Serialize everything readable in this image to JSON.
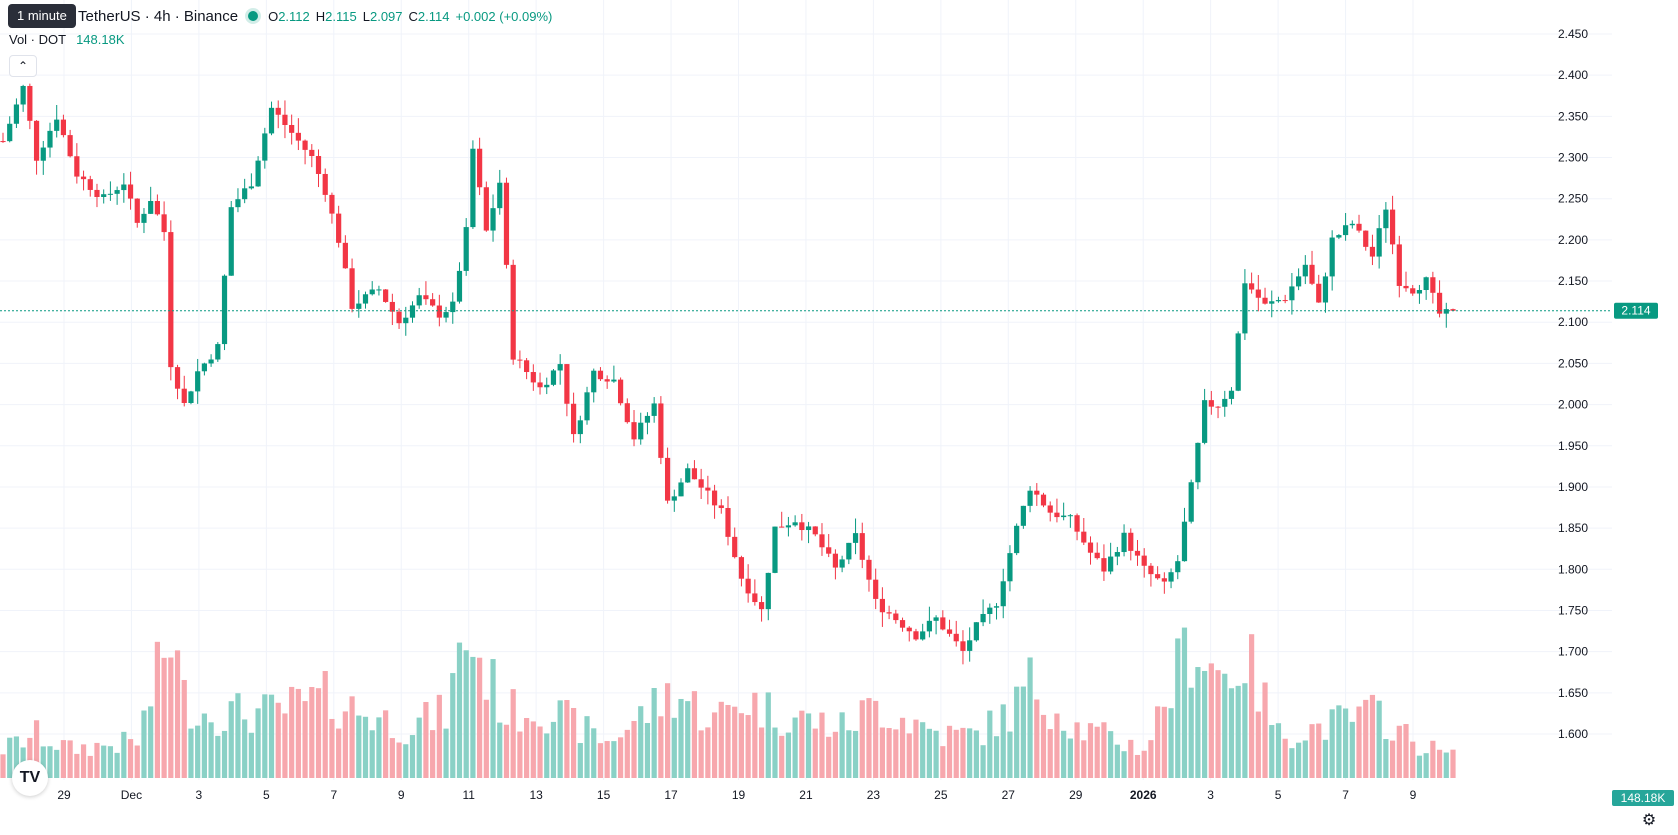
{
  "header": {
    "tooltip": "1 minute",
    "symbol": "TetherUS · 4h · Binance",
    "open_label": "O",
    "open": "2.112",
    "high_label": "H",
    "high": "2.115",
    "low_label": "L",
    "low": "2.097",
    "close_label": "C",
    "close": "2.114",
    "change": "+0.002 (+0.09%)"
  },
  "volume_legend": {
    "label": "Vol · DOT",
    "value": "148.18K"
  },
  "badges": {
    "price": "2.114",
    "volume": "148.18K"
  },
  "icons": {
    "collapse": "chevron-up-icon",
    "logo": "tradingview-logo-icon",
    "settings": "gear-icon",
    "live": "live-dot-icon"
  },
  "colors": {
    "up": "#089981",
    "down": "#f23645",
    "up_vol": "#8ad1c6",
    "down_vol": "#f7a7ad",
    "grid": "#f0f3fa"
  },
  "chart_data": {
    "type": "candlestick",
    "price_axis": {
      "min": 1.6,
      "max": 2.45,
      "ticks": [
        "2.450",
        "2.400",
        "2.350",
        "2.300",
        "2.250",
        "2.200",
        "2.150",
        "2.100",
        "2.050",
        "2.000",
        "1.950",
        "1.900",
        "1.850",
        "1.800",
        "1.750",
        "1.700",
        "1.650",
        "1.600"
      ]
    },
    "x_ticks": [
      "29",
      "Dec",
      "3",
      "5",
      "7",
      "9",
      "11",
      "13",
      "15",
      "17",
      "19",
      "21",
      "23",
      "25",
      "27",
      "29",
      "2026",
      "3",
      "5",
      "7",
      "9"
    ],
    "last_price": 2.114,
    "anchors": [
      [
        0,
        2.32
      ],
      [
        3,
        2.385
      ],
      [
        5,
        2.3
      ],
      [
        8,
        2.35
      ],
      [
        11,
        2.28
      ],
      [
        15,
        2.25
      ],
      [
        18,
        2.27
      ],
      [
        20,
        2.22
      ],
      [
        22,
        2.25
      ],
      [
        24,
        2.21
      ],
      [
        25,
        2.05
      ],
      [
        27,
        2.0
      ],
      [
        29,
        2.04
      ],
      [
        32,
        2.07
      ],
      [
        34,
        2.24
      ],
      [
        37,
        2.27
      ],
      [
        40,
        2.36
      ],
      [
        43,
        2.33
      ],
      [
        46,
        2.3
      ],
      [
        48,
        2.26
      ],
      [
        50,
        2.2
      ],
      [
        52,
        2.12
      ],
      [
        56,
        2.14
      ],
      [
        59,
        2.1
      ],
      [
        62,
        2.13
      ],
      [
        65,
        2.11
      ],
      [
        67,
        2.12
      ],
      [
        69,
        2.21
      ],
      [
        70,
        2.31
      ],
      [
        72,
        2.21
      ],
      [
        74,
        2.27
      ],
      [
        76,
        2.06
      ],
      [
        80,
        2.02
      ],
      [
        83,
        2.05
      ],
      [
        85,
        1.96
      ],
      [
        88,
        2.04
      ],
      [
        91,
        2.03
      ],
      [
        94,
        1.96
      ],
      [
        97,
        2.0
      ],
      [
        99,
        1.88
      ],
      [
        102,
        1.92
      ],
      [
        104,
        1.9
      ],
      [
        107,
        1.87
      ],
      [
        110,
        1.79
      ],
      [
        113,
        1.75
      ],
      [
        115,
        1.85
      ],
      [
        118,
        1.86
      ],
      [
        121,
        1.84
      ],
      [
        124,
        1.8
      ],
      [
        127,
        1.84
      ],
      [
        130,
        1.76
      ],
      [
        133,
        1.74
      ],
      [
        136,
        1.72
      ],
      [
        139,
        1.74
      ],
      [
        141,
        1.72
      ],
      [
        143,
        1.7
      ],
      [
        145,
        1.73
      ],
      [
        148,
        1.76
      ],
      [
        151,
        1.85
      ],
      [
        153,
        1.9
      ],
      [
        156,
        1.87
      ],
      [
        159,
        1.86
      ],
      [
        162,
        1.82
      ],
      [
        164,
        1.8
      ],
      [
        167,
        1.84
      ],
      [
        170,
        1.8
      ],
      [
        173,
        1.78
      ],
      [
        175,
        1.81
      ],
      [
        177,
        1.9
      ],
      [
        179,
        2.0
      ],
      [
        181,
        2.0
      ],
      [
        183,
        2.02
      ],
      [
        185,
        2.15
      ],
      [
        188,
        2.12
      ],
      [
        191,
        2.13
      ],
      [
        194,
        2.17
      ],
      [
        196,
        2.12
      ],
      [
        198,
        2.2
      ],
      [
        201,
        2.22
      ],
      [
        204,
        2.18
      ],
      [
        206,
        2.24
      ],
      [
        208,
        2.15
      ],
      [
        210,
        2.14
      ],
      [
        212,
        2.15
      ],
      [
        214,
        2.11
      ],
      [
        216,
        2.11
      ]
    ],
    "volume_anchors": [
      [
        0,
        0.2
      ],
      [
        5,
        0.3
      ],
      [
        10,
        0.2
      ],
      [
        20,
        0.25
      ],
      [
        25,
        1.0
      ],
      [
        27,
        0.55
      ],
      [
        30,
        0.45
      ],
      [
        40,
        0.45
      ],
      [
        48,
        0.55
      ],
      [
        60,
        0.35
      ],
      [
        66,
        0.45
      ],
      [
        69,
        1.0
      ],
      [
        75,
        0.45
      ],
      [
        80,
        0.5
      ],
      [
        90,
        0.25
      ],
      [
        100,
        0.6
      ],
      [
        106,
        0.4
      ],
      [
        110,
        0.55
      ],
      [
        115,
        0.45
      ],
      [
        125,
        0.35
      ],
      [
        130,
        0.5
      ],
      [
        140,
        0.3
      ],
      [
        145,
        0.3
      ],
      [
        150,
        0.45
      ],
      [
        153,
        0.65
      ],
      [
        160,
        0.35
      ],
      [
        170,
        0.2
      ],
      [
        177,
        0.95
      ],
      [
        182,
        0.7
      ],
      [
        185,
        0.85
      ],
      [
        190,
        0.3
      ],
      [
        196,
        0.35
      ],
      [
        200,
        0.4
      ],
      [
        205,
        0.45
      ],
      [
        210,
        0.25
      ],
      [
        216,
        0.15
      ]
    ]
  }
}
